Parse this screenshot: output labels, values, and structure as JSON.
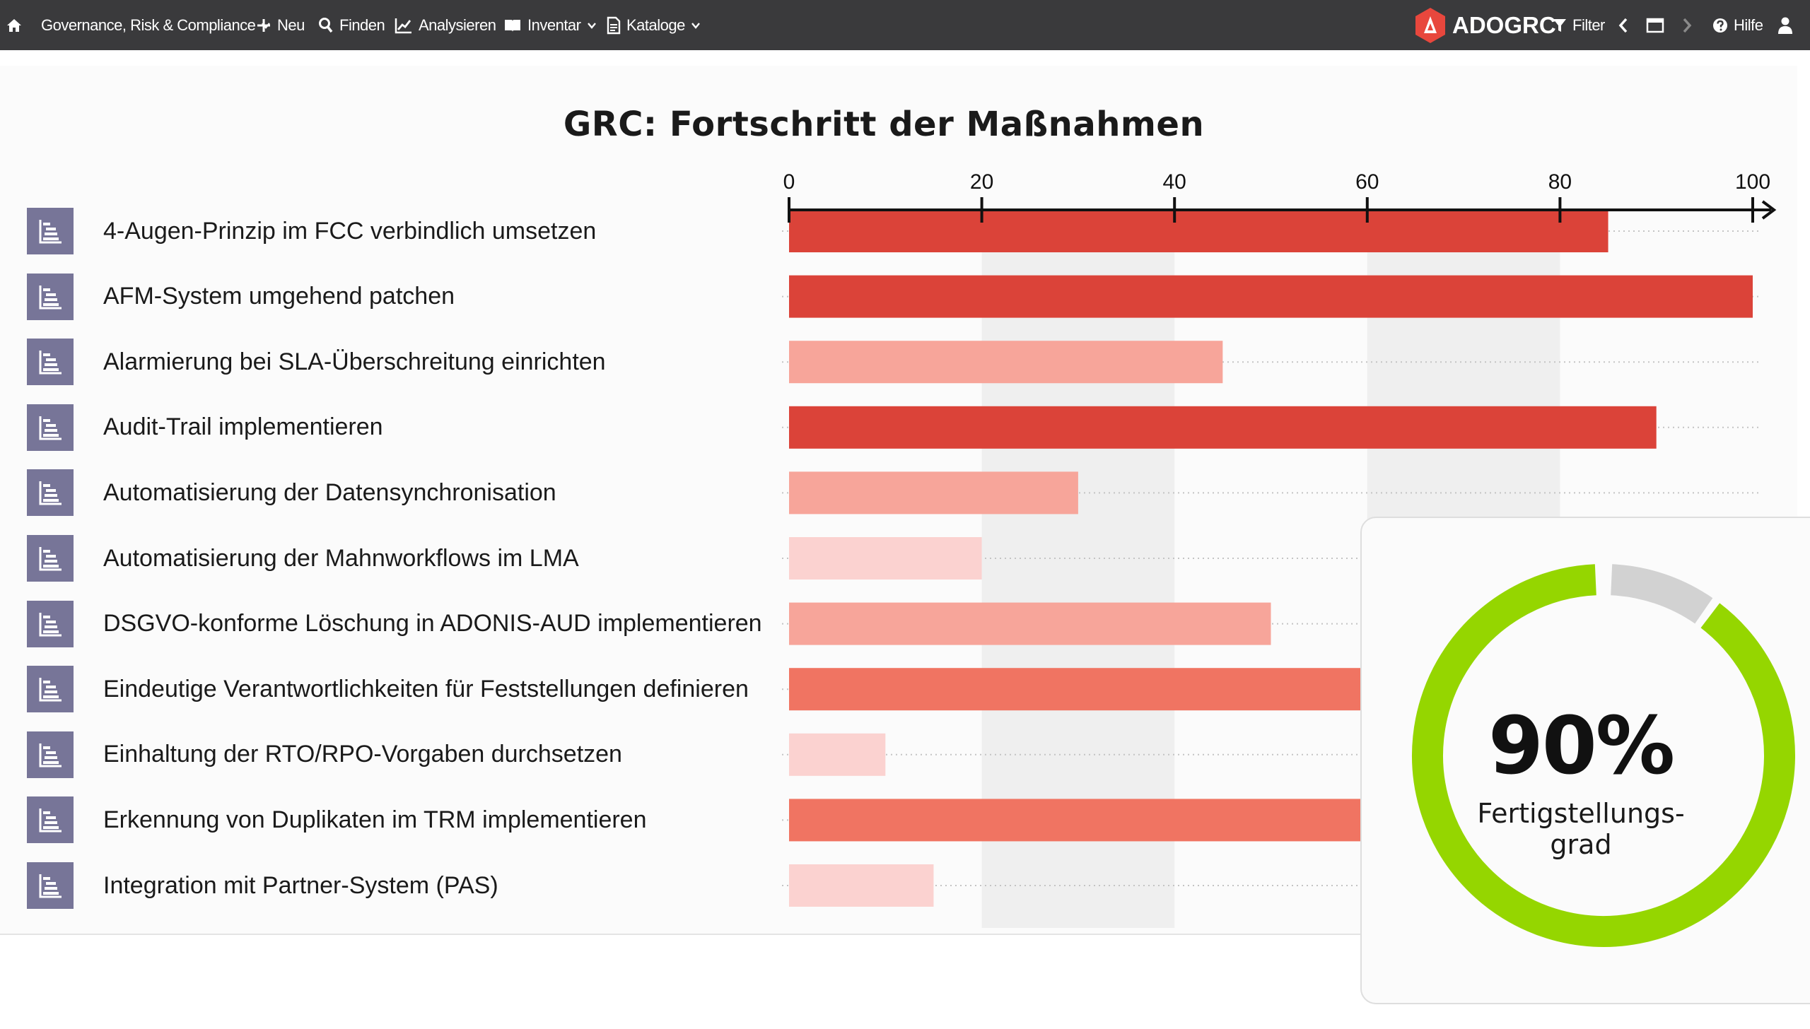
{
  "nav": {
    "home_icon": "home-icon",
    "governance": "Governance, Risk & Compliance",
    "neu": "Neu",
    "finden": "Finden",
    "analysieren": "Analysieren",
    "inventar": "Inventar",
    "kataloge": "Kataloge",
    "brand": "ADOGRC",
    "filter": "Filter",
    "hilfe": "Hilfe"
  },
  "colors": {
    "topbar": "#3a3a3c",
    "bar_dark": "#db4339",
    "bar_medium": "#f07462",
    "bar_light": "#f7a59a",
    "bar_pale": "#fbd2d0",
    "row_icon": "#777598",
    "donut_progress": "#95d600",
    "donut_rest": "#d2d2d2",
    "brand": "#e8473d"
  },
  "chart_data": {
    "type": "bar",
    "orientation": "horizontal",
    "title": "GRC:  Fortschritt der Maßnahmen",
    "xlim": [
      0,
      100
    ],
    "xticks": [
      0,
      20,
      40,
      60,
      80,
      100
    ],
    "axis_position": "top",
    "categories": [
      "4-Augen-Prinzip im FCC verbindlich umsetzen",
      "AFM-System umgehend patchen",
      "Alarmierung bei SLA-Überschreitung einrichten",
      "Audit-Trail implementieren",
      "Automatisierung der Datensynchronisation",
      "Automatisierung der Mahnworkflows im LMA",
      "DSGVO-konforme Löschung in ADONIS-AUD implementieren",
      "Eindeutige Verantwortlichkeiten für Feststellungen definieren",
      "Einhaltung der RTO/RPO-Vorgaben durchsetzen",
      "Erkennung von Duplikaten im TRM implementieren",
      "Integration mit Partner-System (PAS)"
    ],
    "values": [
      85,
      100,
      45,
      90,
      30,
      20,
      50,
      65,
      10,
      75,
      15
    ],
    "bar_colors": [
      "#db4339",
      "#db4339",
      "#f7a59a",
      "#db4339",
      "#f7a59a",
      "#fbd2d0",
      "#f7a59a",
      "#f07462",
      "#fbd2d0",
      "#f07462",
      "#fbd2d0"
    ]
  },
  "completion": {
    "value": "90%",
    "percent": 90,
    "label_line1": "Fertigstellungs-",
    "label_line2": "grad"
  }
}
